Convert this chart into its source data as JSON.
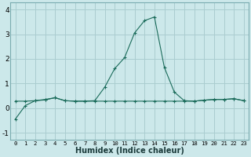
{
  "xlabel": "Humidex (Indice chaleur)",
  "x": [
    0,
    1,
    2,
    3,
    4,
    5,
    6,
    7,
    8,
    9,
    10,
    11,
    12,
    13,
    14,
    15,
    16,
    17,
    18,
    19,
    20,
    21,
    22,
    23
  ],
  "y_main": [
    -0.45,
    0.1,
    0.3,
    0.35,
    0.42,
    0.3,
    0.28,
    0.28,
    0.3,
    0.85,
    1.6,
    2.05,
    3.05,
    3.55,
    3.7,
    1.65,
    0.65,
    0.3,
    0.28,
    0.32,
    0.35,
    0.35,
    0.38,
    0.3
  ],
  "y_flat": [
    0.28,
    0.28,
    0.3,
    0.33,
    0.42,
    0.3,
    0.28,
    0.28,
    0.28,
    0.28,
    0.28,
    0.28,
    0.28,
    0.28,
    0.28,
    0.28,
    0.28,
    0.28,
    0.28,
    0.32,
    0.35,
    0.35,
    0.38,
    0.3
  ],
  "line_color": "#1a6b5a",
  "marker": "+",
  "bg_color": "#cce8ea",
  "grid_color": "#aacdd0",
  "ylim": [
    -1.3,
    4.3
  ],
  "xlim": [
    -0.5,
    23.5
  ],
  "yticks": [
    -1,
    0,
    1,
    2,
    3,
    4
  ],
  "xticks": [
    0,
    1,
    2,
    3,
    4,
    5,
    6,
    7,
    8,
    9,
    10,
    11,
    12,
    13,
    14,
    15,
    16,
    17,
    18,
    19,
    20,
    21,
    22,
    23
  ],
  "xlabel_fontsize": 7,
  "ytick_fontsize": 6.5,
  "xtick_fontsize": 5.2
}
